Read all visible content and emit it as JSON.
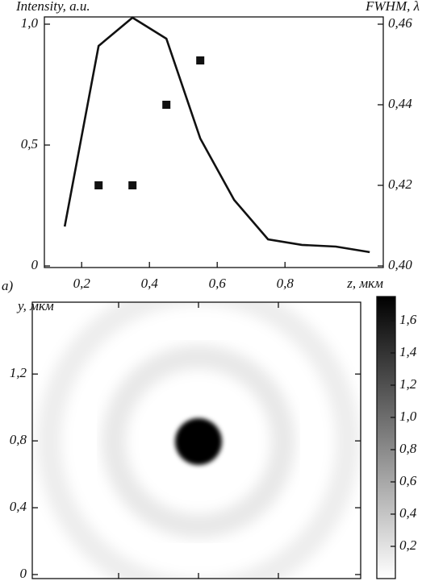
{
  "chart_data": [
    {
      "type": "line-scatter",
      "ylabel": "Intensity, a.u.",
      "y2label": "FWHM, λ",
      "xlabel": "z, мкм",
      "panel_label": "a)",
      "xlim": [
        0.09,
        1.09
      ],
      "xticks": [
        {
          "value": 0.2,
          "label": "0,2"
        },
        {
          "value": 0.4,
          "label": "0,4"
        },
        {
          "value": 0.6,
          "label": "0,6"
        },
        {
          "value": 0.8,
          "label": "0,8"
        }
      ],
      "ylim": [
        0,
        1.03
      ],
      "yticks": [
        0,
        {
          "value": 0.5,
          "label": "0,5"
        },
        {
          "value": 1.0,
          "label": "1,0"
        }
      ],
      "y2lim": [
        0.4,
        0.4618
      ],
      "y2ticks": [
        {
          "value": 0.4,
          "label": "0,40"
        },
        {
          "value": 0.42,
          "label": "0,42"
        },
        {
          "value": 0.44,
          "label": "0,44"
        },
        {
          "value": 0.46,
          "label": "0,46"
        }
      ],
      "series": [
        {
          "kind": "line",
          "color": "#111111",
          "x": [
            0.15,
            0.25,
            0.35,
            0.45,
            0.55,
            0.65,
            0.75,
            0.85,
            0.95,
            1.05
          ],
          "values": [
            0.163,
            0.91,
            1.027,
            0.94,
            0.527,
            0.273,
            0.11,
            0.087,
            0.08,
            0.057
          ]
        },
        {
          "kind": "scatter",
          "axis": "y2",
          "color": "#111111",
          "x": [
            0.25,
            0.35,
            0.45,
            0.55
          ],
          "values": [
            0.42,
            0.42,
            0.44,
            0.451
          ]
        }
      ]
    },
    {
      "type": "heatmap",
      "ylabel": "y, мкм",
      "ylim": [
        0,
        1.63
      ],
      "yticks": [
        0,
        {
          "value": 0.4,
          "label": "0,4"
        },
        {
          "value": 0.8,
          "label": "0,8"
        },
        {
          "value": 1.2,
          "label": "1,2"
        }
      ],
      "colorbar": {
        "lim": [
          0,
          1.75
        ],
        "ticks": [
          {
            "value": 0.2,
            "label": "0,2"
          },
          {
            "value": 0.4,
            "label": "0,4"
          },
          {
            "value": 0.6,
            "label": "0,6"
          },
          {
            "value": 0.8,
            "label": "0,8"
          },
          {
            "value": 1.0,
            "label": "1,0"
          },
          {
            "value": 1.2,
            "label": "1,2"
          },
          {
            "value": 1.4,
            "label": "1,4"
          },
          {
            "value": 1.6,
            "label": "1,6"
          }
        ]
      }
    }
  ]
}
